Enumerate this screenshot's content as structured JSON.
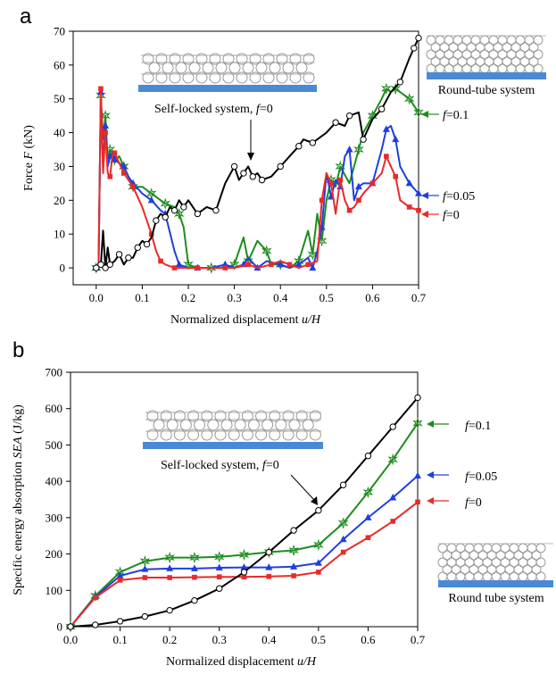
{
  "chart_data": [
    {
      "panel": "a",
      "type": "line",
      "xlabel_text": "Normalized displacement ",
      "xlabel_var": "u/H",
      "ylabel_text": "Force ",
      "ylabel_var": "F",
      "ylabel_unit": " (kN)",
      "xlim": [
        -0.05,
        0.7
      ],
      "ylim": [
        -5,
        70
      ],
      "xticks": [
        "0.0",
        "0.1",
        "0.2",
        "0.3",
        "0.4",
        "0.5",
        "0.6",
        "0.7"
      ],
      "yticks": [
        "0",
        "10",
        "20",
        "30",
        "40",
        "50",
        "60",
        "70"
      ],
      "annotations": {
        "self_locked": "Self-locked system, ",
        "f_var": "f",
        "self_locked_value": "=0",
        "round_tube": "Round-tube system"
      },
      "series": [
        {
          "label_var": "f",
          "label_value": "=0.1",
          "color": "#1e8c1e",
          "marker": "star",
          "x": [
            0,
            0.005,
            0.01,
            0.015,
            0.02,
            0.025,
            0.03,
            0.035,
            0.04,
            0.05,
            0.06,
            0.07,
            0.08,
            0.1,
            0.12,
            0.14,
            0.15,
            0.17,
            0.18,
            0.19,
            0.2,
            0.22,
            0.25,
            0.28,
            0.3,
            0.32,
            0.33,
            0.35,
            0.37,
            0.38,
            0.4,
            0.42,
            0.44,
            0.46,
            0.47,
            0.48,
            0.49,
            0.5,
            0.51,
            0.52,
            0.53,
            0.55,
            0.57,
            0.58,
            0.6,
            0.62,
            0.63,
            0.64,
            0.65,
            0.66,
            0.68,
            0.7
          ],
          "y": [
            0,
            0,
            51,
            38,
            45,
            32,
            35,
            34,
            32,
            33,
            30,
            27,
            24,
            24,
            22,
            20,
            19,
            18,
            16,
            12,
            1,
            0,
            0,
            0,
            1,
            9,
            2,
            8,
            5,
            1,
            1,
            0,
            2,
            11,
            4,
            16,
            8,
            20,
            26,
            24,
            30,
            25,
            35,
            40,
            45,
            50,
            53,
            52,
            53,
            52,
            50,
            46
          ]
        },
        {
          "label_var": "f",
          "label_value": "=0.05",
          "color": "#1f3fe0",
          "marker": "triangle",
          "x": [
            0,
            0.005,
            0.01,
            0.015,
            0.02,
            0.025,
            0.03,
            0.035,
            0.04,
            0.05,
            0.06,
            0.07,
            0.08,
            0.1,
            0.12,
            0.14,
            0.15,
            0.17,
            0.18,
            0.2,
            0.22,
            0.25,
            0.28,
            0.3,
            0.32,
            0.33,
            0.35,
            0.37,
            0.4,
            0.42,
            0.44,
            0.46,
            0.47,
            0.48,
            0.49,
            0.5,
            0.51,
            0.52,
            0.53,
            0.54,
            0.55,
            0.56,
            0.57,
            0.58,
            0.6,
            0.62,
            0.63,
            0.64,
            0.65,
            0.66,
            0.68,
            0.7
          ],
          "y": [
            0,
            0,
            52,
            30,
            42,
            30,
            33,
            34,
            32,
            31,
            30,
            27,
            25,
            22,
            20,
            17,
            16,
            5,
            1,
            0,
            0,
            0,
            1,
            0,
            1,
            3,
            0,
            2,
            1,
            0,
            1,
            3,
            0,
            5,
            12,
            28,
            21,
            26,
            24,
            33,
            35,
            20,
            24,
            25,
            25,
            35,
            41,
            42,
            38,
            30,
            25,
            22
          ]
        },
        {
          "label_var": "f",
          "label_value": "=0",
          "color": "#e82a2a",
          "marker": "square",
          "x": [
            0,
            0.005,
            0.01,
            0.015,
            0.02,
            0.025,
            0.03,
            0.035,
            0.04,
            0.05,
            0.06,
            0.07,
            0.08,
            0.1,
            0.12,
            0.13,
            0.14,
            0.15,
            0.17,
            0.2,
            0.22,
            0.25,
            0.28,
            0.3,
            0.33,
            0.35,
            0.38,
            0.4,
            0.42,
            0.44,
            0.46,
            0.48,
            0.49,
            0.5,
            0.51,
            0.52,
            0.53,
            0.54,
            0.55,
            0.56,
            0.57,
            0.58,
            0.6,
            0.62,
            0.63,
            0.64,
            0.65,
            0.66,
            0.68,
            0.7
          ],
          "y": [
            0,
            0,
            53,
            28,
            40,
            28,
            27,
            33,
            34,
            31,
            28,
            26,
            24,
            18,
            10,
            5,
            2,
            1,
            0,
            0,
            0,
            0,
            0,
            0,
            1,
            0,
            1,
            2,
            1,
            0,
            1,
            2,
            20,
            28,
            25,
            16,
            26,
            20,
            17,
            18,
            20,
            22,
            25,
            28,
            33,
            30,
            27,
            20,
            18,
            17
          ]
        },
        {
          "label": "Self-locked system, f=0",
          "color": "#000000",
          "marker": "circle",
          "x": [
            0,
            0.005,
            0.01,
            0.015,
            0.02,
            0.025,
            0.03,
            0.04,
            0.05,
            0.06,
            0.07,
            0.08,
            0.09,
            0.1,
            0.11,
            0.12,
            0.13,
            0.14,
            0.15,
            0.16,
            0.17,
            0.18,
            0.19,
            0.2,
            0.22,
            0.24,
            0.26,
            0.28,
            0.3,
            0.31,
            0.32,
            0.33,
            0.34,
            0.35,
            0.36,
            0.38,
            0.4,
            0.42,
            0.44,
            0.45,
            0.47,
            0.5,
            0.52,
            0.54,
            0.55,
            0.57,
            0.58,
            0.6,
            0.62,
            0.64,
            0.66,
            0.68,
            0.69,
            0.7
          ],
          "y": [
            0,
            0,
            1,
            11,
            0,
            6,
            1,
            2,
            4,
            1,
            3,
            3,
            6,
            8,
            7,
            9,
            14,
            16,
            15,
            18,
            17,
            20,
            18,
            20,
            16,
            18,
            17,
            25,
            30,
            26,
            28,
            30,
            27,
            28,
            26,
            27,
            30,
            33,
            36,
            38,
            37,
            40,
            43,
            42,
            45,
            46,
            38,
            44,
            47,
            52,
            55,
            62,
            65,
            68
          ]
        }
      ]
    },
    {
      "panel": "b",
      "type": "line",
      "xlabel_text": "Normalized displacement ",
      "xlabel_var": "u/H",
      "ylabel_text": "Specific energy absorption ",
      "ylabel_var": "SEA",
      "ylabel_unit": " (J/kg)",
      "xlim": [
        0,
        0.7
      ],
      "ylim": [
        0,
        700
      ],
      "xticks": [
        "0.0",
        "0.1",
        "0.2",
        "0.3",
        "0.4",
        "0.5",
        "0.6",
        "0.7"
      ],
      "yticks": [
        "0",
        "100",
        "200",
        "300",
        "400",
        "500",
        "600",
        "700"
      ],
      "annotations": {
        "self_locked": "Self-locked system, ",
        "f_var": "f",
        "self_locked_value": "=0",
        "round_tube": "Round tube system"
      },
      "series": [
        {
          "label_var": "f",
          "label_value": "=0.1",
          "color": "#1e8c1e",
          "marker": "star",
          "x": [
            0,
            0.05,
            0.1,
            0.15,
            0.2,
            0.25,
            0.3,
            0.35,
            0.4,
            0.45,
            0.5,
            0.55,
            0.6,
            0.65,
            0.7
          ],
          "y": [
            0,
            85,
            150,
            180,
            190,
            190,
            192,
            198,
            205,
            210,
            225,
            285,
            370,
            460,
            560
          ]
        },
        {
          "label_var": "f",
          "label_value": "=0.05",
          "color": "#1f3fe0",
          "marker": "triangle",
          "x": [
            0,
            0.05,
            0.1,
            0.15,
            0.2,
            0.25,
            0.3,
            0.35,
            0.4,
            0.45,
            0.5,
            0.55,
            0.6,
            0.65,
            0.7
          ],
          "y": [
            0,
            82,
            140,
            158,
            160,
            160,
            162,
            163,
            163,
            165,
            175,
            240,
            300,
            355,
            415
          ]
        },
        {
          "label_var": "f",
          "label_value": "=0",
          "color": "#e82a2a",
          "marker": "square",
          "x": [
            0,
            0.05,
            0.1,
            0.15,
            0.2,
            0.25,
            0.3,
            0.35,
            0.4,
            0.45,
            0.5,
            0.55,
            0.6,
            0.65,
            0.7
          ],
          "y": [
            0,
            80,
            128,
            135,
            135,
            136,
            137,
            137,
            138,
            140,
            150,
            205,
            245,
            290,
            343
          ]
        },
        {
          "label": "Self-locked system, f=0",
          "color": "#000000",
          "marker": "circle",
          "x": [
            0,
            0.05,
            0.1,
            0.15,
            0.2,
            0.25,
            0.3,
            0.35,
            0.4,
            0.45,
            0.5,
            0.55,
            0.6,
            0.65,
            0.7
          ],
          "y": [
            0,
            5,
            15,
            28,
            45,
            72,
            105,
            150,
            205,
            265,
            320,
            390,
            470,
            550,
            630
          ]
        }
      ]
    }
  ]
}
